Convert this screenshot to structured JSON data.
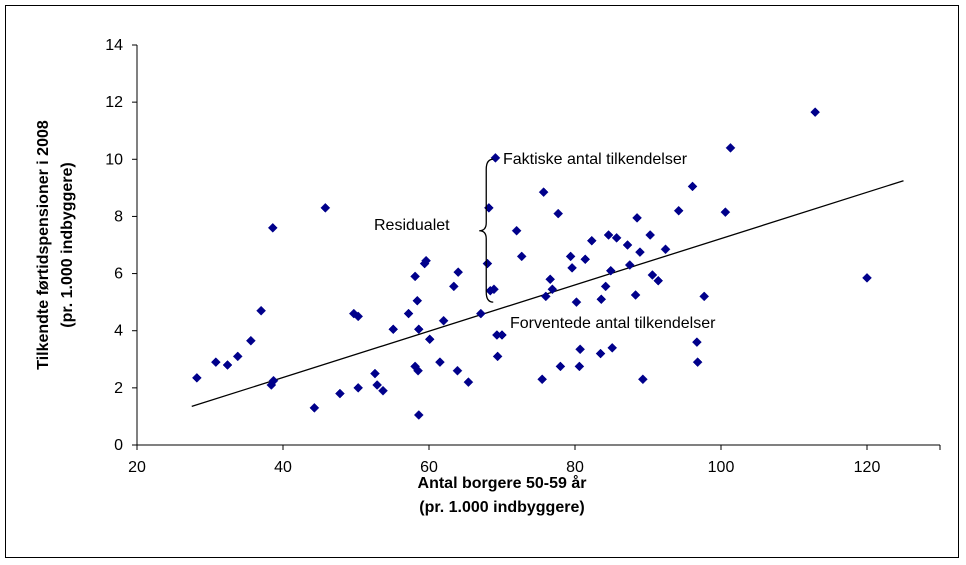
{
  "chart_data": {
    "type": "scatter",
    "title": "",
    "xlabel": [
      "Antal borgere 50-59 år",
      "(pr. 1.000 indbyggere)"
    ],
    "ylabel": [
      "Tilkendte førtidspensioner i 2008",
      "(pr. 1.000 indbyggere)"
    ],
    "xlim": [
      20,
      130
    ],
    "ylim": [
      0,
      14
    ],
    "xticks": [
      "20",
      "40",
      "60",
      "80",
      "100",
      "120"
    ],
    "yticks": [
      "0",
      "2",
      "4",
      "6",
      "8",
      "10",
      "12",
      "14"
    ],
    "grid": false,
    "marker_color": "#00008B",
    "trend_line": {
      "x": [
        27.5,
        125
      ],
      "y": [
        1.35,
        9.25
      ]
    },
    "annotations": {
      "actual": "Faktiske antal tilkendelser",
      "residual": "Residualet",
      "expected": "Forventede antal tilkendelser"
    },
    "residual_bracket": {
      "x": 68.8,
      "y_top": 10.0,
      "y_bottom": 5.0
    },
    "points": [
      [
        28.2,
        2.35
      ],
      [
        30.8,
        2.9
      ],
      [
        32.4,
        2.8
      ],
      [
        33.8,
        3.1
      ],
      [
        35.6,
        3.65
      ],
      [
        37.0,
        4.7
      ],
      [
        38.4,
        2.1
      ],
      [
        38.7,
        2.25
      ],
      [
        38.6,
        7.6
      ],
      [
        44.3,
        1.3
      ],
      [
        45.8,
        8.3
      ],
      [
        47.8,
        1.8
      ],
      [
        49.7,
        4.6
      ],
      [
        50.3,
        4.5
      ],
      [
        50.3,
        2.0
      ],
      [
        52.6,
        2.5
      ],
      [
        52.9,
        2.1
      ],
      [
        53.7,
        1.9
      ],
      [
        55.1,
        4.05
      ],
      [
        57.2,
        4.6
      ],
      [
        58.1,
        5.9
      ],
      [
        58.1,
        2.75
      ],
      [
        58.4,
        5.05
      ],
      [
        58.5,
        2.6
      ],
      [
        58.6,
        4.05
      ],
      [
        58.6,
        1.05
      ],
      [
        59.4,
        6.35
      ],
      [
        59.6,
        6.45
      ],
      [
        60.1,
        3.7
      ],
      [
        61.5,
        2.9
      ],
      [
        62.0,
        4.35
      ],
      [
        63.4,
        5.55
      ],
      [
        63.9,
        2.6
      ],
      [
        64.0,
        6.05
      ],
      [
        65.4,
        2.2
      ],
      [
        67.1,
        4.6
      ],
      [
        68.0,
        6.35
      ],
      [
        68.2,
        8.3
      ],
      [
        68.4,
        5.4
      ],
      [
        68.9,
        5.45
      ],
      [
        69.3,
        3.85
      ],
      [
        69.4,
        3.1
      ],
      [
        70.0,
        3.85
      ],
      [
        72.0,
        7.5
      ],
      [
        72.7,
        6.6
      ],
      [
        75.5,
        2.3
      ],
      [
        75.7,
        8.85
      ],
      [
        76.0,
        5.2
      ],
      [
        76.6,
        5.8
      ],
      [
        76.9,
        5.45
      ],
      [
        77.7,
        8.1
      ],
      [
        78.0,
        2.75
      ],
      [
        79.4,
        6.6
      ],
      [
        79.6,
        6.2
      ],
      [
        80.2,
        5.0
      ],
      [
        80.6,
        2.75
      ],
      [
        80.7,
        3.35
      ],
      [
        81.4,
        6.5
      ],
      [
        82.3,
        7.15
      ],
      [
        83.5,
        3.2
      ],
      [
        83.6,
        5.1
      ],
      [
        84.2,
        5.55
      ],
      [
        84.6,
        7.35
      ],
      [
        84.9,
        6.1
      ],
      [
        85.1,
        3.4
      ],
      [
        85.7,
        7.25
      ],
      [
        87.2,
        7.0
      ],
      [
        87.5,
        6.3
      ],
      [
        88.3,
        5.25
      ],
      [
        88.5,
        7.95
      ],
      [
        88.9,
        6.75
      ],
      [
        89.3,
        2.3
      ],
      [
        90.3,
        7.35
      ],
      [
        90.6,
        5.95
      ],
      [
        91.4,
        5.75
      ],
      [
        92.4,
        6.85
      ],
      [
        94.2,
        8.2
      ],
      [
        96.1,
        9.05
      ],
      [
        96.7,
        3.6
      ],
      [
        96.8,
        2.9
      ],
      [
        97.7,
        5.2
      ],
      [
        100.6,
        8.15
      ],
      [
        101.3,
        10.4
      ],
      [
        112.9,
        11.65
      ],
      [
        120.0,
        5.85
      ],
      [
        69.1,
        10.05
      ]
    ]
  }
}
